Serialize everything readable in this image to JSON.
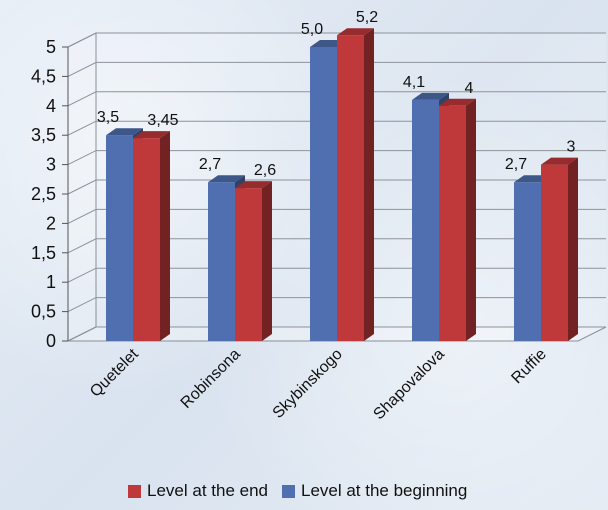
{
  "chart_data": {
    "type": "bar",
    "categories": [
      "Quetelet",
      "Robinsona",
      "Skybinskogo",
      "Shapovalova",
      "Ruffie"
    ],
    "series": [
      {
        "name": "Level at the beginning",
        "color": "#4f6fb0",
        "values": [
          3.5,
          2.7,
          5.0,
          4.1,
          2.7
        ],
        "labels": [
          "3,5",
          "2,7",
          "5,0",
          "4,1",
          "2,7"
        ]
      },
      {
        "name": "Level at the end",
        "color": "#c0393a",
        "values": [
          3.45,
          2.6,
          5.2,
          4.0,
          3.0
        ],
        "labels": [
          "3,45",
          "2,6",
          "5,2",
          "4",
          "3"
        ]
      }
    ],
    "yticks": [
      "0",
      "0,5",
      "1",
      "1,5",
      "2",
      "2,5",
      "3",
      "3,5",
      "4",
      "4,5",
      "5"
    ],
    "ylim": [
      0,
      5
    ],
    "grid": true,
    "legend_position": "bottom",
    "legend_order": [
      "Level at the end",
      "Level at the beginning"
    ]
  }
}
